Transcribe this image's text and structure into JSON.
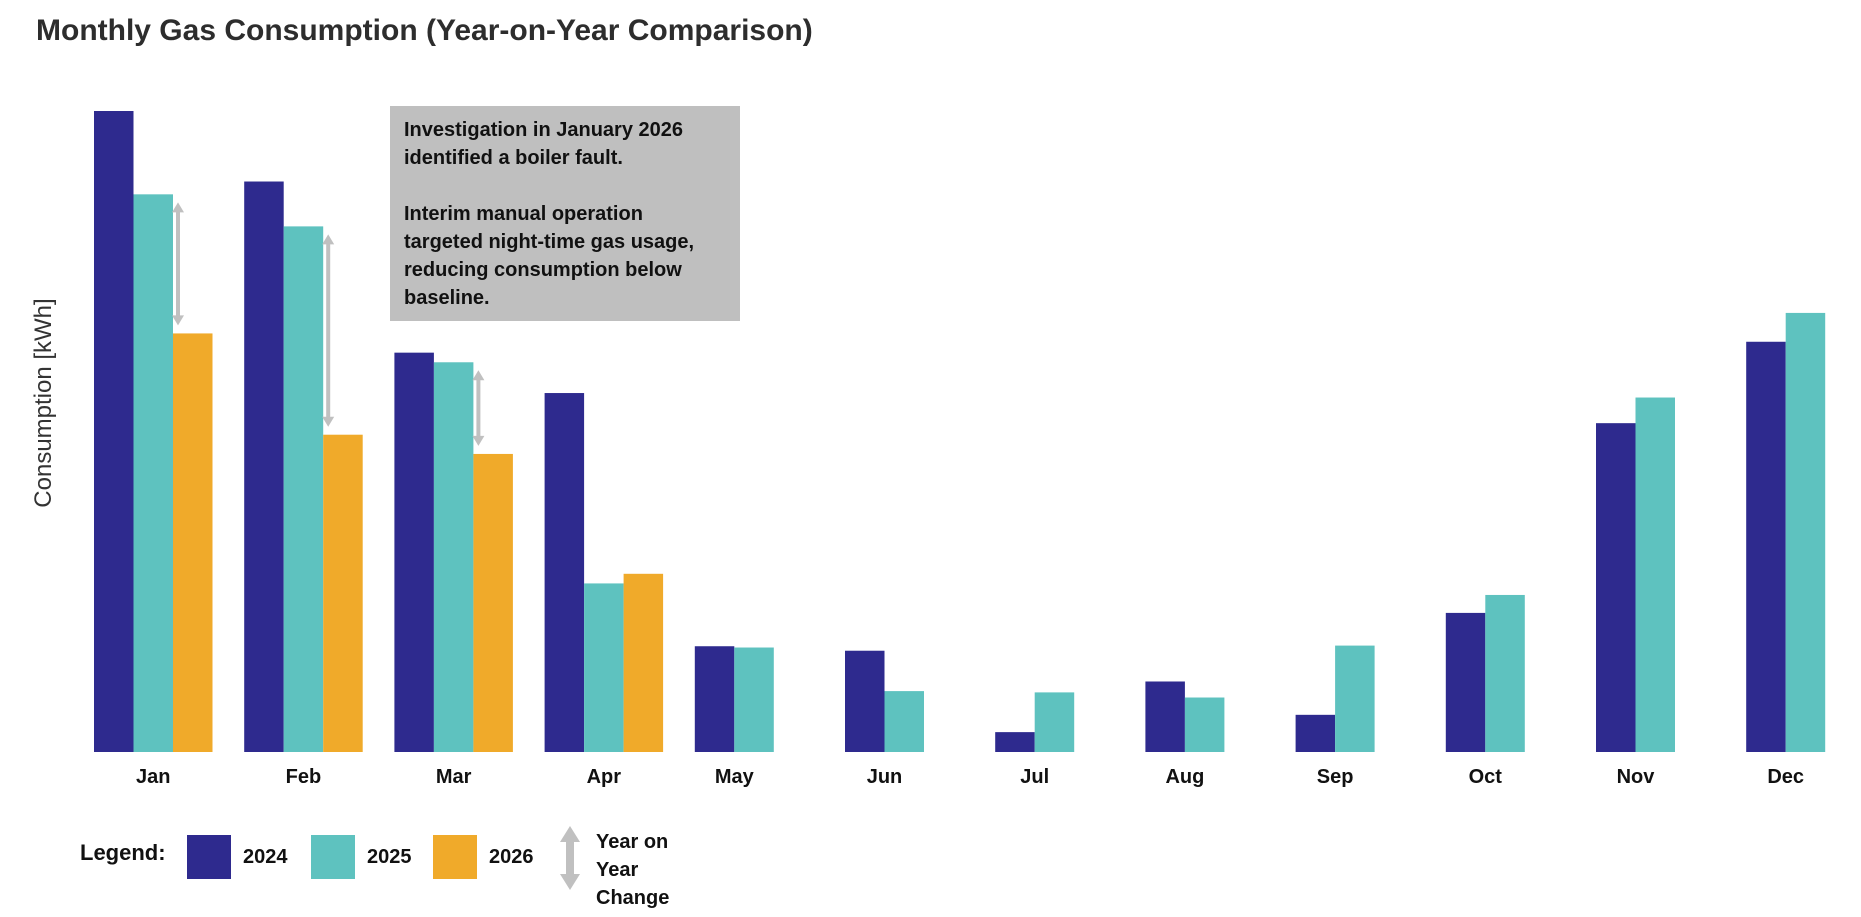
{
  "chart_data": {
    "type": "bar",
    "title": "Monthly Gas Consumption (Year-on-Year Comparison)",
    "ylabel": "Consumption [kWh]",
    "xlabel": "",
    "ylim": [
      0,
      100
    ],
    "categories": [
      "Jan",
      "Feb",
      "Mar",
      "Apr",
      "May",
      "Jun",
      "Jul",
      "Aug",
      "Sep",
      "Oct",
      "Nov",
      "Dec"
    ],
    "series": [
      {
        "name": "2024",
        "color": "#2e2a8e",
        "values": [
          100,
          89,
          62.3,
          56,
          16.5,
          15.8,
          3.1,
          11,
          5.8,
          21.7,
          51.3,
          64
        ]
      },
      {
        "name": "2025",
        "color": "#5ec2bf",
        "values": [
          87,
          82,
          60.8,
          26.3,
          16.3,
          9.5,
          9.3,
          8.5,
          16.6,
          24.5,
          55.3,
          68.5
        ]
      },
      {
        "name": "2026",
        "color": "#f0aa2a",
        "values": [
          65.3,
          49.5,
          46.5,
          27.8,
          null,
          null,
          null,
          null,
          null,
          null,
          null,
          null
        ]
      }
    ],
    "yoy_change_months": [
      "Jan",
      "Feb",
      "Mar"
    ],
    "grid": false,
    "legend_position": "bottom-left",
    "annotation": {
      "lines": [
        "Investigation in January 2026 identified a boiler fault.",
        "Interim manual operation targeted night-time gas usage, reducing consumption below baseline."
      ]
    }
  },
  "legend": {
    "title": "Legend:",
    "arrow_label_line1": "Year on Year",
    "arrow_label_line2": "Change",
    "arrow_color": "#c0c0c0"
  }
}
